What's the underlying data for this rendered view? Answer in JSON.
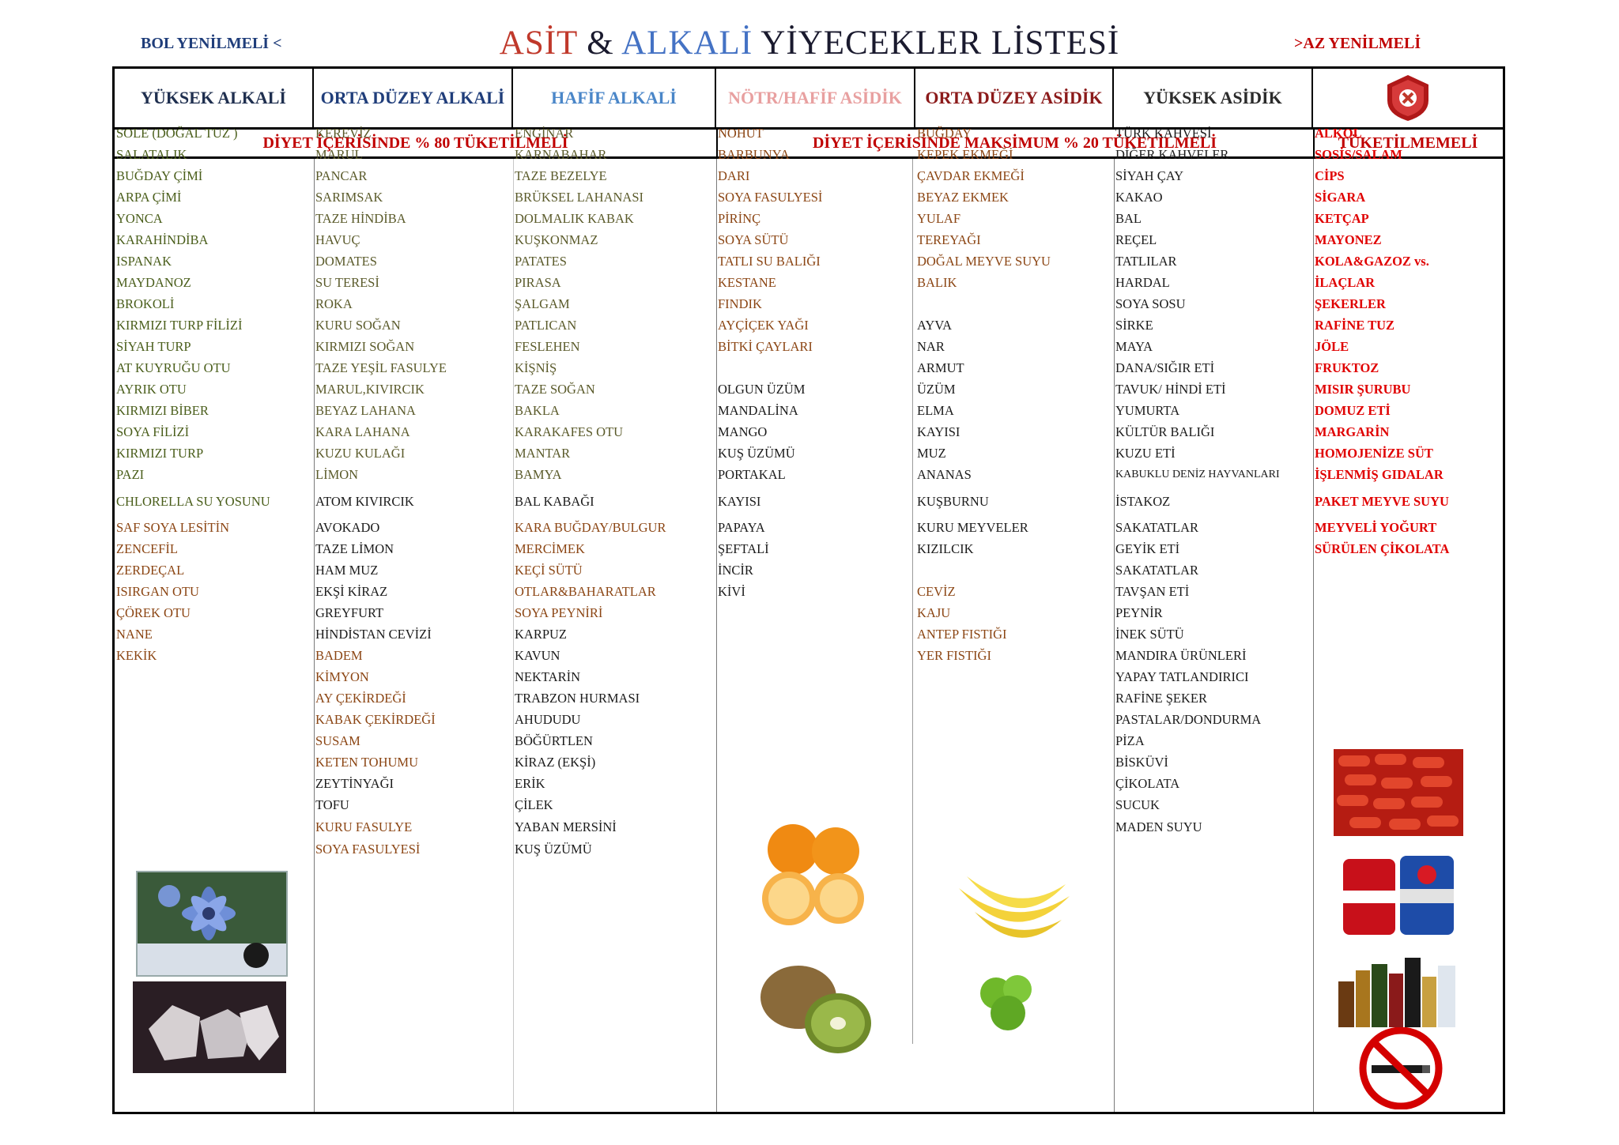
{
  "header": {
    "left_note": "BOL YENİLMELİ <",
    "right_note": ">AZ YENİLMELİ",
    "title_part1": "ASİT",
    "title_amp": " & ",
    "title_part2": "ALKALİ",
    "title_part3": " YİYECEKLER LİSTESİ"
  },
  "columns": {
    "h1": "YÜKSEK ALKALİ",
    "h2": "ORTA DÜZEY ALKALİ",
    "h3": "HAFİF ALKALİ",
    "h4": "NÖTR/HAFİF ASİDİK",
    "h5": "ORTA DÜZEY ASİDİK",
    "h6": "YÜKSEK ASİDİK"
  },
  "sections": {
    "s1": "DİYET İÇERİSİNDE % 80 TÜKETİLMELİ",
    "s2": "DİYET İÇERİSİNDE MAKSİMUM % 20 TÜKETİLMELİ",
    "s3": "TÜKETİLMEMELİ"
  },
  "col1": [
    "SOLE (DOĞAL TUZ )",
    "SALATALIK",
    "BUĞDAY ÇİMİ",
    "ARPA ÇİMİ",
    "YONCA",
    "KARAHİNDİBA",
    "ISPANAK",
    "MAYDANOZ",
    "BROKOLİ",
    "KIRMIZI TURP FİLİZİ",
    "SİYAH TURP",
    "AT KUYRUĞU OTU",
    "AYRIK OTU",
    "KIRMIZI BİBER",
    "SOYA FİLİZİ",
    "KIRMIZI TURP",
    "PAZI",
    "CHLORELLA SU YOSUNU",
    "SAF SOYA LESİTİN",
    "ZENCEFİL",
    "ZERDEÇAL",
    "ISIRGAN OTU",
    "ÇÖREK OTU",
    "NANE",
    "KEKİK"
  ],
  "col2": [
    "KEREVİZ",
    "MARUL",
    "PANCAR",
    "SARIMSAK",
    "TAZE HİNDİBA",
    "HAVUÇ",
    "DOMATES",
    "SU TERESİ",
    "ROKA",
    "KURU SOĞAN",
    "KIRMIZI SOĞAN",
    "TAZE YEŞİL FASULYE",
    "MARUL,KIVIRCIK",
    "BEYAZ LAHANA",
    "KARA LAHANA",
    "KUZU KULAĞI",
    "LİMON",
    "ATOM KIVIRCIK",
    "AVOKADO",
    "TAZE LİMON",
    "HAM MUZ",
    "EKŞİ KİRAZ",
    "GREYFURT",
    "HİNDİSTAN CEVİZİ",
    "BADEM",
    "KİMYON",
    "AY ÇEKİRDEĞİ",
    "KABAK ÇEKİRDEĞİ",
    "SUSAM",
    "KETEN TOHUMU",
    "ZEYTİNYAĞI",
    "TOFU",
    "KURU FASULYE",
    "SOYA FASULYESİ"
  ],
  "col3": [
    "ENGİNAR",
    "KARNABAHAR",
    "TAZE BEZELYE",
    "BRÜKSEL LAHANASI",
    "DOLMALIK KABAK",
    "KUŞKONMAZ",
    "PATATES",
    "PIRASA",
    "ŞALGAM",
    "PATLICAN",
    "FESLEHEN",
    "KİŞNİŞ",
    "TAZE SOĞAN",
    "BAKLA",
    "KARAKAFES OTU",
    "MANTAR",
    "BAMYA",
    "BAL KABAĞI",
    "KARA BUĞDAY/BULGUR",
    "MERCİMEK",
    "KEÇİ SÜTÜ",
    "OTLAR&BAHARATLAR",
    "SOYA PEYNİRİ",
    "KARPUZ",
    "KAVUN",
    "NEKTARİN",
    "TRABZON HURMASI",
    "AHUDUDU",
    "BÖĞÜRTLEN",
    "KİRAZ (EKŞİ)",
    "ERİK",
    "ÇİLEK",
    "YABAN MERSİNİ",
    "KUŞ ÜZÜMÜ"
  ],
  "col4": [
    "NOHUT",
    "BARBUNYA",
    "DARI",
    "SOYA FASULYESİ",
    "PİRİNÇ",
    "SOYA SÜTÜ",
    "TATLI SU BALIĞI",
    "KESTANE",
    "FINDIK",
    "AYÇİÇEK YAĞI",
    "BİTKİ ÇAYLARI",
    "OLGUN ÜZÜM",
    "MANDALİNA",
    "MANGO",
    "KUŞ ÜZÜMÜ",
    "PORTAKAL",
    "KAYISI",
    "PAPAYA",
    "ŞEFTALİ",
    "İNCİR",
    "KİVİ"
  ],
  "col5": [
    "BUĞDAY",
    "KEPEK EKMEĞİ",
    "ÇAVDAR EKMEĞİ",
    "BEYAZ EKMEK",
    "YULAF",
    "TEREYAĞI",
    "DOĞAL MEYVE SUYU",
    "BALIK",
    "AYVA",
    "NAR",
    "ARMUT",
    "ÜZÜM",
    "ELMA",
    "KAYISI",
    "MUZ",
    "ANANAS",
    "KUŞBURNU",
    "KURU MEYVELER",
    "KIZILCIK",
    "CEVİZ",
    "KAJU",
    "ANTEP FISTIĞI",
    "YER FISTIĞI"
  ],
  "col6": [
    "TÜRK KAHVESİ",
    "DİĞER KAHVELER",
    "SİYAH ÇAY",
    "KAKAO",
    "BAL",
    "REÇEL",
    "TATLILAR",
    "HARDAL",
    "SOYA SOSU",
    "SİRKE",
    "MAYA",
    "DANA/SIĞIR ETİ",
    "TAVUK/ HİNDİ ETİ",
    "YUMURTA",
    "KÜLTÜR BALIĞI",
    "KUZU ETİ",
    "KABUKLU DENİZ HAYVANLARI",
    "İSTAKOZ",
    "SAKATATLAR",
    "GEYİK ETİ",
    "SAKATATLAR",
    "TAVŞAN ETİ",
    "PEYNİR",
    "İNEK SÜTÜ",
    "MANDIRA ÜRÜNLERİ",
    "YAPAY TATLANDIRICI",
    "RAFİNE ŞEKER",
    "PASTALAR/DONDURMA",
    "PİZA",
    "BİSKÜVİ",
    "ÇİKOLATA",
    "SUCUK",
    "MADEN SUYU"
  ],
  "col7": [
    "ALKOL",
    "SOSİS/SALAM",
    "CİPS",
    "SİGARA",
    "KETÇAP",
    "MAYONEZ",
    "KOLA&GAZOZ vs.",
    "İLAÇLAR",
    "ŞEKERLER",
    "RAFİNE TUZ",
    "JÖLE",
    "FRUKTOZ",
    "MISIR ŞURUBU",
    "DOMUZ ETİ",
    "MARGARİN",
    "HOMOJENİZE SÜT",
    "İŞLENMİŞ GIDALAR",
    "PAKET MEYVE SUYU",
    "MEYVELİ YOĞURT",
    "SÜRÜLEN ÇİKOLATA"
  ],
  "colors": {
    "title_red": "#c0392b",
    "title_blue": "#4472c4",
    "title_dark": "#1a1a2e",
    "section_red": "#c00000",
    "h1": "#1f2f4f",
    "h2": "#1f3d7a",
    "h3": "#4a86c8",
    "h4": "#e8a0a0",
    "h5": "#8b1a1a",
    "h6": "#2a2a2a"
  },
  "icons": [
    "forbidden-shield-icon",
    "nigella-flower-image",
    "salt-crystals-image",
    "orange-image",
    "kiwi-image",
    "banana-image",
    "green-apple-image",
    "pills-image",
    "cola-cans-image",
    "liquor-bottles-image",
    "no-smoking-icon"
  ]
}
